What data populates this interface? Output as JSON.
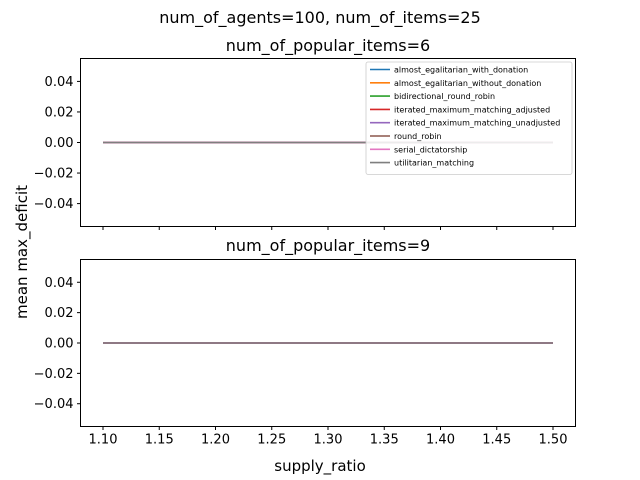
{
  "figure": {
    "suptitle": "num_of_agents=100, num_of_items=25",
    "shared_xlabel": "supply_ratio",
    "shared_ylabel": "mean max_deficit"
  },
  "colors": {
    "almost_egalitarian_with_donation": "#1f77b4",
    "almost_egalitarian_without_donation": "#ff7f0e",
    "bidirectional_round_robin": "#2ca02c",
    "iterated_maximum_matching_adjusted": "#d62728",
    "iterated_maximum_matching_unadjusted": "#9467bd",
    "round_robin": "#8c564b",
    "serial_dictatorship": "#e377c2",
    "utilitarian_matching": "#7f7f7f"
  },
  "chart_data": [
    {
      "type": "line",
      "title": "num_of_popular_items=6",
      "x": [
        1.1,
        1.5
      ],
      "xlim": [
        1.08,
        1.52
      ],
      "ylim": [
        -0.055,
        0.055
      ],
      "xticks": [
        1.1,
        1.15,
        1.2,
        1.25,
        1.3,
        1.35,
        1.4,
        1.45,
        1.5
      ],
      "xtick_labels_visible": false,
      "yticks": [
        0.04,
        0.02,
        0.0,
        -0.02,
        -0.04
      ],
      "ytick_labels": [
        "0.04",
        "0.02",
        "0.00",
        "−0.02",
        "−0.04"
      ],
      "legend_position": "top-right",
      "series": [
        {
          "name": "almost_egalitarian_with_donation",
          "values": [
            0.0,
            0.0
          ]
        },
        {
          "name": "almost_egalitarian_without_donation",
          "values": [
            0.0,
            0.0
          ]
        },
        {
          "name": "bidirectional_round_robin",
          "values": [
            0.0,
            0.0
          ]
        },
        {
          "name": "iterated_maximum_matching_adjusted",
          "values": [
            0.0,
            0.0
          ]
        },
        {
          "name": "iterated_maximum_matching_unadjusted",
          "values": [
            0.0,
            0.0
          ]
        },
        {
          "name": "round_robin",
          "values": [
            0.0,
            0.0
          ]
        },
        {
          "name": "serial_dictatorship",
          "values": [
            0.0,
            0.0
          ]
        },
        {
          "name": "utilitarian_matching",
          "values": [
            0.0,
            0.0
          ]
        }
      ]
    },
    {
      "type": "line",
      "title": "num_of_popular_items=9",
      "x": [
        1.1,
        1.5
      ],
      "xlim": [
        1.08,
        1.52
      ],
      "ylim": [
        -0.055,
        0.055
      ],
      "xticks": [
        1.1,
        1.15,
        1.2,
        1.25,
        1.3,
        1.35,
        1.4,
        1.45,
        1.5
      ],
      "xtick_labels": [
        "1.10",
        "1.15",
        "1.20",
        "1.25",
        "1.30",
        "1.35",
        "1.40",
        "1.45",
        "1.50"
      ],
      "xtick_labels_visible": true,
      "yticks": [
        0.04,
        0.02,
        0.0,
        -0.02,
        -0.04
      ],
      "ytick_labels": [
        "0.04",
        "0.02",
        "0.00",
        "−0.02",
        "−0.04"
      ],
      "series": [
        {
          "name": "almost_egalitarian_with_donation",
          "values": [
            0.0,
            0.0
          ]
        },
        {
          "name": "almost_egalitarian_without_donation",
          "values": [
            0.0,
            0.0
          ]
        },
        {
          "name": "bidirectional_round_robin",
          "values": [
            0.0,
            0.0
          ]
        },
        {
          "name": "iterated_maximum_matching_adjusted",
          "values": [
            0.0,
            0.0
          ]
        },
        {
          "name": "iterated_maximum_matching_unadjusted",
          "values": [
            0.0,
            0.0
          ]
        },
        {
          "name": "round_robin",
          "values": [
            0.0,
            0.0
          ]
        },
        {
          "name": "serial_dictatorship",
          "values": [
            0.0,
            0.0
          ]
        },
        {
          "name": "utilitarian_matching",
          "values": [
            0.0,
            0.0
          ]
        }
      ]
    }
  ]
}
